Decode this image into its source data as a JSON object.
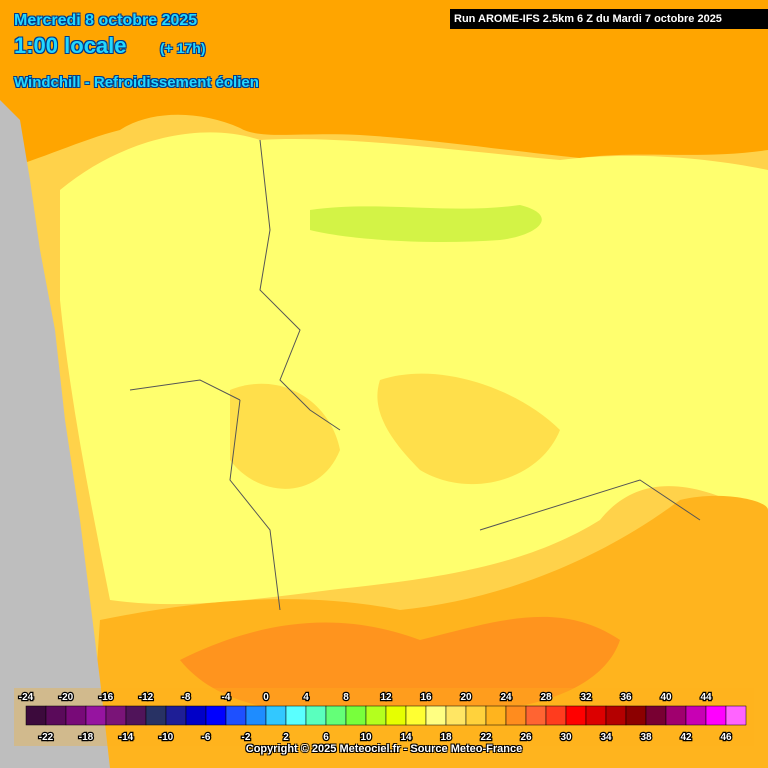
{
  "header": {
    "date": "Mercredi 8 octobre 2025",
    "time": "1:00 locale",
    "lead": "(+ 17h)",
    "parameter": "Windchill - Refroidissement éolien"
  },
  "run": "Run AROME-IFS 2.5km 6 Z du Mardi 7 octobre 2025",
  "copyright": "Copyright © 2025 Meteociel.fr - Source Meteo-France",
  "legend": {
    "values": [
      -24,
      -22,
      -20,
      -18,
      -16,
      -14,
      -12,
      -10,
      -8,
      -6,
      -4,
      -2,
      0,
      2,
      4,
      6,
      8,
      10,
      12,
      14,
      16,
      18,
      20,
      22,
      24,
      26,
      28,
      30,
      32,
      34,
      36,
      38,
      40,
      42,
      44,
      46
    ],
    "colors": [
      "#3c0a3c",
      "#5a0a5a",
      "#780a78",
      "#9614a0",
      "#7a1478",
      "#50145a",
      "#283264",
      "#1e1e96",
      "#0000c8",
      "#0000ff",
      "#1e50ff",
      "#1e8cff",
      "#32c8ff",
      "#5affff",
      "#5affbe",
      "#64ff78",
      "#78ff3c",
      "#b4ff1e",
      "#e6ff00",
      "#ffff32",
      "#ffff82",
      "#ffe664",
      "#ffd23c",
      "#ffb41e",
      "#ff8c1e",
      "#ff6432",
      "#ff3c1e",
      "#ff0000",
      "#dc0000",
      "#b40000",
      "#8c0000",
      "#780032",
      "#a0006e",
      "#c800b4",
      "#ff00ff",
      "#ff64ff"
    ]
  }
}
